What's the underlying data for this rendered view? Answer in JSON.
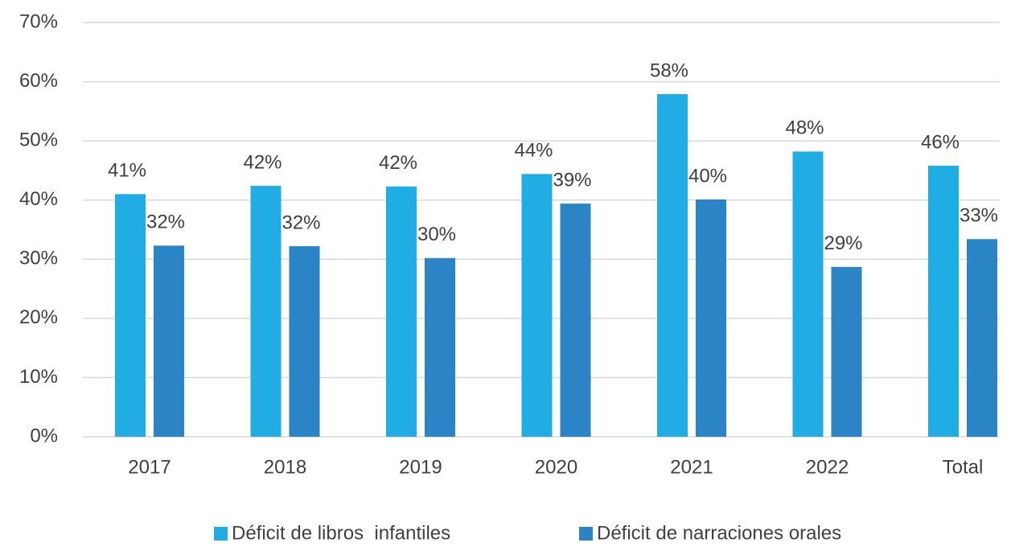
{
  "chart_data": {
    "type": "bar",
    "categories": [
      "2017",
      "2018",
      "2019",
      "2020",
      "2021",
      "2022",
      "Total"
    ],
    "series": [
      {
        "name": "Déficit de libros  infantiles",
        "color": "#1fade3",
        "values": [
          41.0,
          42.4,
          42.3,
          44.4,
          57.9,
          48.2,
          45.8
        ],
        "value_labels": [
          "41%",
          "42%",
          "42%",
          "44%",
          "58%",
          "48%",
          "46%"
        ]
      },
      {
        "name": "Déficit de narraciones orales",
        "color": "#2a84c6",
        "values": [
          32.3,
          32.2,
          30.2,
          39.4,
          40.1,
          28.7,
          33.4
        ],
        "value_labels": [
          "32%",
          "32%",
          "30%",
          "39%",
          "40%",
          "29%",
          "33%"
        ]
      }
    ],
    "ylim": [
      0,
      70
    ],
    "yticks": [
      {
        "value": 0,
        "label": "0%"
      },
      {
        "value": 10,
        "label": "10%"
      },
      {
        "value": 20,
        "label": "20%"
      },
      {
        "value": 30,
        "label": "30%"
      },
      {
        "value": 40,
        "label": "40%"
      },
      {
        "value": 50,
        "label": "50%"
      },
      {
        "value": 60,
        "label": "60%"
      },
      {
        "value": 70,
        "label": "70%"
      }
    ],
    "grid": true,
    "legend": "bottom"
  }
}
